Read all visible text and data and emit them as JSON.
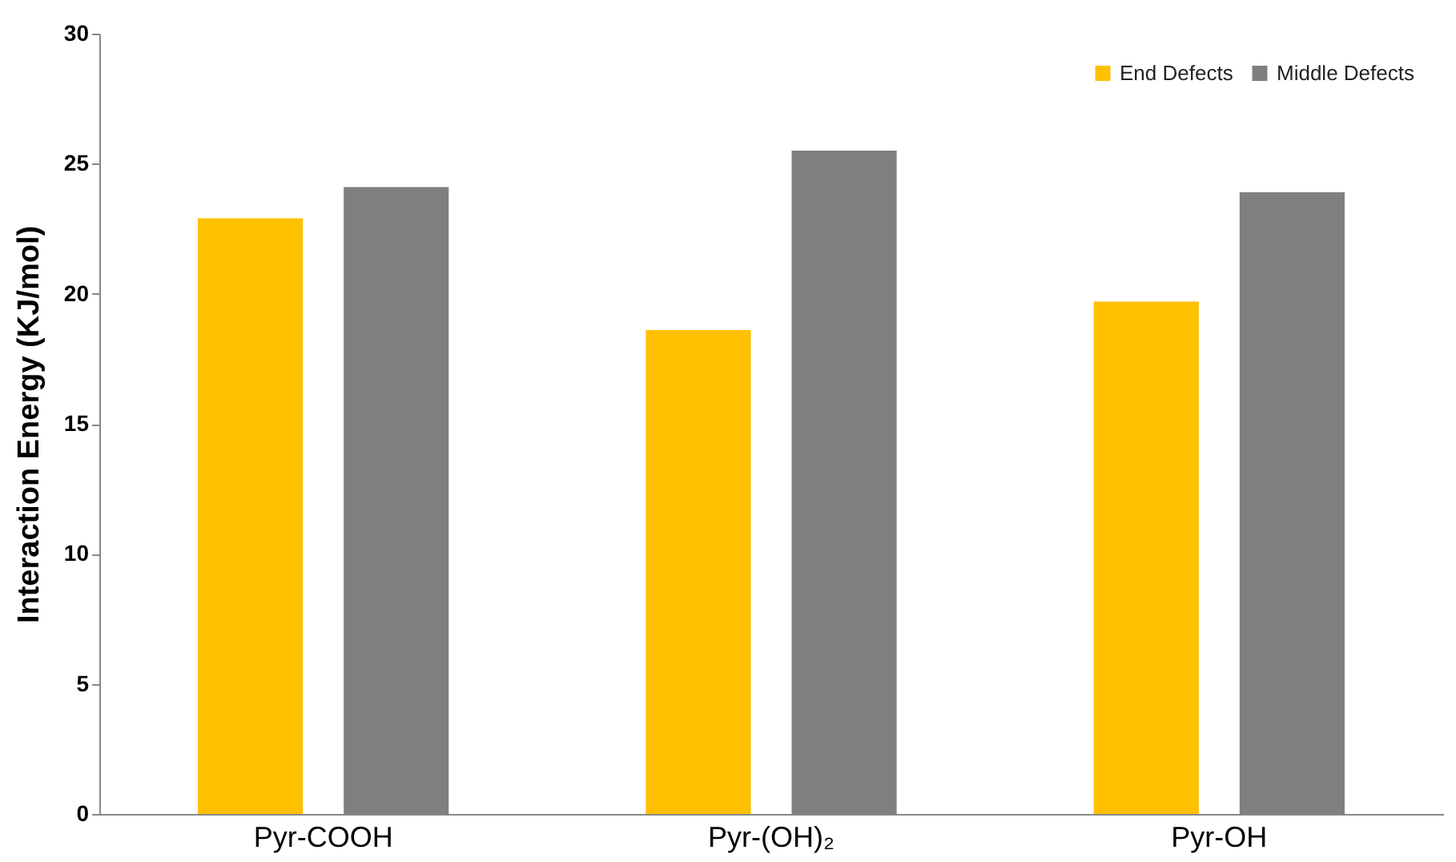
{
  "chart_data": {
    "type": "bar",
    "ylabel": "Interaction Energy (KJ/mol)",
    "categories": [
      "Pyr-COOH",
      "Pyr-(OH)₂",
      "Pyr-OH"
    ],
    "series": [
      {
        "name": "End Defects",
        "color": "#ffc000",
        "values": [
          22.9,
          18.6,
          19.7
        ]
      },
      {
        "name": "Middle Defects",
        "color": "#7f7f7f",
        "values": [
          24.1,
          25.5,
          23.9
        ]
      }
    ],
    "ylim": [
      0,
      30
    ],
    "yticks": [
      0,
      5,
      10,
      15,
      20,
      25,
      30
    ],
    "grid": false,
    "legend": "top right"
  }
}
